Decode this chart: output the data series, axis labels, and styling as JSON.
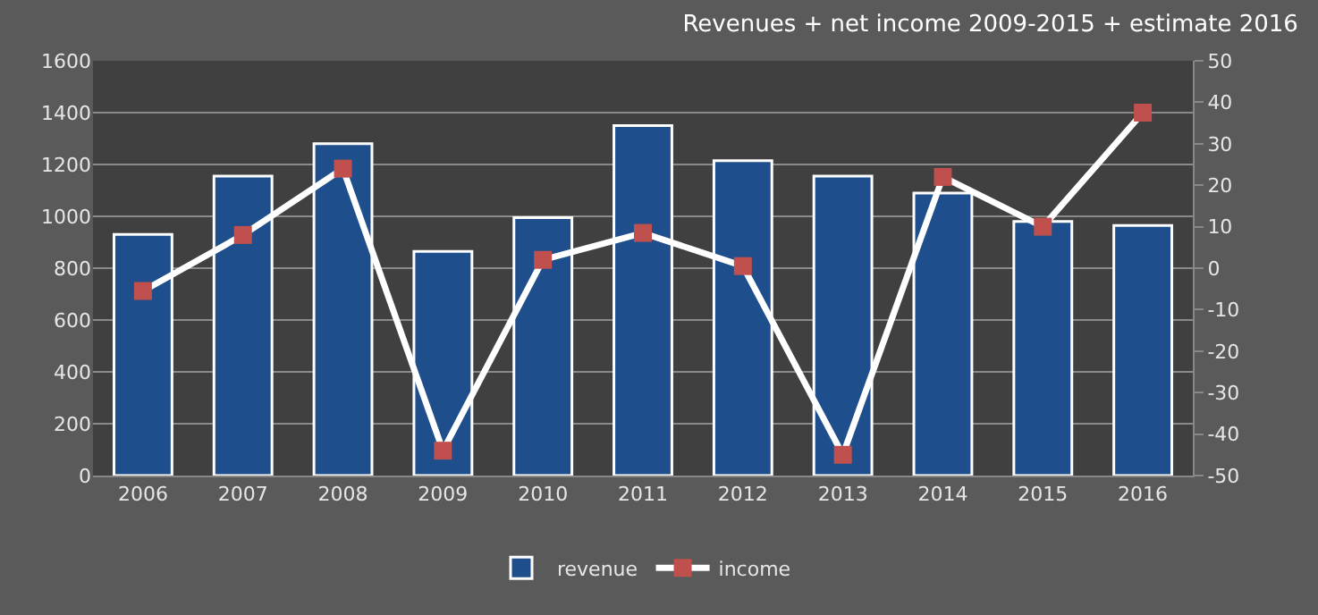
{
  "chart_data": {
    "type": "bar",
    "title": "Revenues + net income 2009-2015 + estimate 2016",
    "categories": [
      "2006",
      "2007",
      "2008",
      "2009",
      "2010",
      "2011",
      "2012",
      "2013",
      "2014",
      "2015",
      "2016"
    ],
    "series": [
      {
        "name": "revenue",
        "color": "#1f4e8c",
        "values": [
          930,
          1155,
          1280,
          865,
          995,
          1350,
          1215,
          1155,
          1090,
          980,
          965
        ]
      },
      {
        "name": "income",
        "type": "line",
        "axis": "y2",
        "color": "#ffffff",
        "marker": "square",
        "values": [
          -5.5,
          8,
          24,
          -44,
          2,
          8.5,
          0.5,
          -45,
          22,
          10,
          37.5
        ]
      }
    ],
    "ylim": [
      0,
      1600
    ],
    "yticks": [
      0,
      200,
      400,
      600,
      800,
      1000,
      1200,
      1400,
      1600
    ],
    "y2lim": [
      -50,
      50
    ],
    "y2ticks": [
      -50,
      -40,
      -30,
      -20,
      -10,
      0,
      10,
      20,
      30,
      40,
      50
    ],
    "grid": "y",
    "legend": "bottom"
  }
}
